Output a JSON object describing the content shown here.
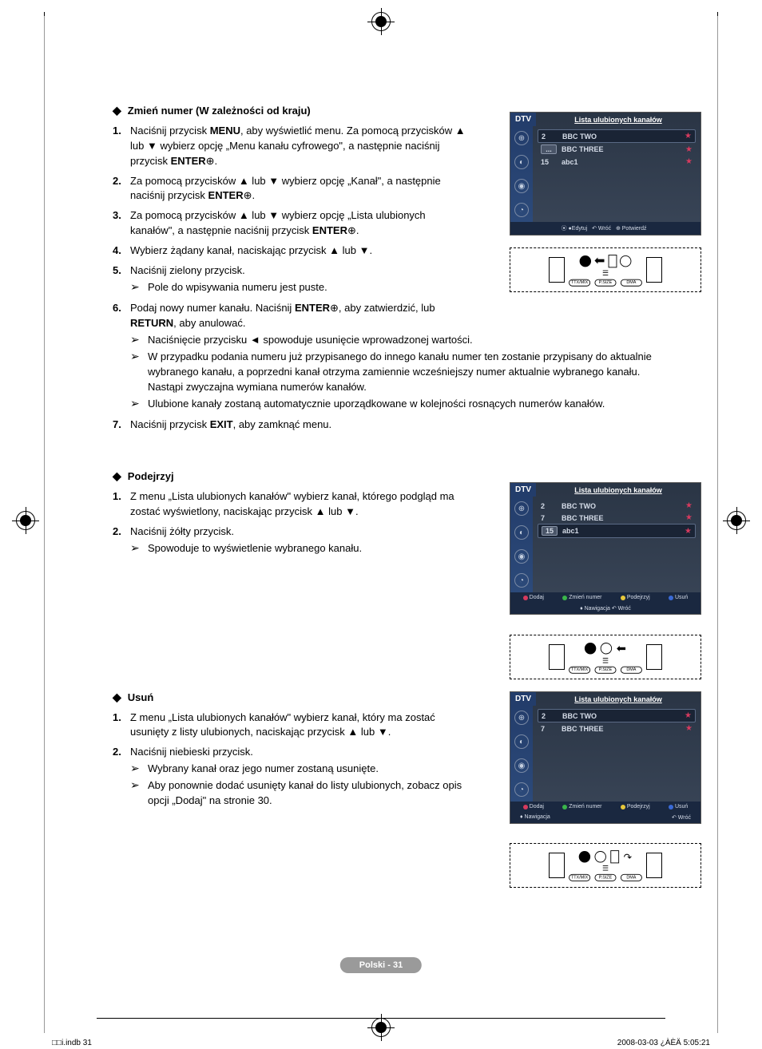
{
  "section1": {
    "title": "Zmień numer (W zależności od kraju)",
    "steps": [
      {
        "n": "1.",
        "html": "Naciśnij przycisk <b>MENU</b>, aby wyświetlić menu. Za pomocą przycisków ▲ lub ▼ wybierz opcję „Menu kanału cyfrowego\", a następnie naciśnij przycisk <b>ENTER</b>⊕."
      },
      {
        "n": "2.",
        "html": "Za pomocą przycisków ▲ lub ▼ wybierz opcję „Kanał\", a następnie naciśnij przycisk <b>ENTER</b>⊕."
      },
      {
        "n": "3.",
        "html": "Za pomocą przycisków ▲ lub ▼ wybierz opcję „Lista ulubionych kanałów\", a następnie naciśnij przycisk <b>ENTER</b>⊕."
      },
      {
        "n": "4.",
        "html": "Wybierz żądany kanał, naciskając przycisk ▲ lub ▼."
      },
      {
        "n": "5.",
        "html": "Naciśnij zielony przycisk.",
        "sub": [
          "Pole do wpisywania numeru jest puste."
        ]
      },
      {
        "n": "6.",
        "html": "Podaj nowy numer kanału. Naciśnij <b>ENTER</b>⊕, aby zatwierdzić, lub <b>RETURN</b>, aby anulować.",
        "sub": [
          "Naciśnięcie przycisku ◄ spowoduje usunięcie wprowadzonej wartości.",
          "W przypadku podania numeru już przypisanego do innego kanału numer ten zostanie przypisany do aktualnie wybranego kanału, a poprzedni kanał otrzyma zamiennie wcześniejszy numer aktualnie wybranego kanału. Nastąpi zwyczajna wymiana numerów kanałów.",
          "Ulubione kanały zostaną automatycznie uporządkowane w kolejności rosnących numerów kanałów."
        ]
      },
      {
        "n": "7.",
        "html": "Naciśnij przycisk <b>EXIT</b>, aby zamknąć menu."
      }
    ]
  },
  "section2": {
    "title": "Podejrzyj",
    "steps": [
      {
        "n": "1.",
        "html": "Z menu „Lista ulubionych kanałów\" wybierz kanał, którego podgląd ma zostać wyświetlony, naciskając przycisk ▲ lub ▼."
      },
      {
        "n": "2.",
        "html": "Naciśnij żółty przycisk.",
        "sub": [
          "Spowoduje to wyświetlenie wybranego kanału."
        ]
      }
    ]
  },
  "section3": {
    "title": "Usuń",
    "steps": [
      {
        "n": "1.",
        "html": "Z menu „Lista ulubionych kanałów\" wybierz kanał, który ma zostać usunięty z listy ulubionych, naciskając przycisk ▲ lub ▼."
      },
      {
        "n": "2.",
        "html": "Naciśnij niebieski przycisk.",
        "sub": [
          "Wybrany kanał oraz jego numer zostaną usunięte.",
          "Aby ponownie dodać usunięty kanał do listy ulubionych, zobacz opis opcji „Dodaj\" na stronie 30."
        ]
      }
    ]
  },
  "tv1": {
    "dtv": "DTV",
    "title": "Lista ulubionych kanałów",
    "rows": [
      {
        "num": "2",
        "name": "BBC TWO",
        "star": true,
        "sel": true
      },
      {
        "num": "...",
        "name": "BBC THREE",
        "star": true,
        "box": true
      },
      {
        "num": "15",
        "name": "abc1",
        "star": true
      }
    ],
    "footer_items": [
      {
        "dot": "",
        "t": "⦿ ●Edytuj"
      },
      {
        "t": "↶ Wróć"
      },
      {
        "t": "⊕ Potwierdź"
      }
    ]
  },
  "tv2": {
    "dtv": "DTV",
    "title": "Lista ulubionych kanałów",
    "rows": [
      {
        "num": "2",
        "name": "BBC TWO",
        "star": true
      },
      {
        "num": "7",
        "name": "BBC THREE",
        "star": true
      },
      {
        "num": "15",
        "name": "abc1",
        "star": true,
        "sel": true,
        "box": true
      }
    ],
    "footer2": [
      {
        "cls": "dot-r",
        "t": "Dodaj"
      },
      {
        "cls": "dot-g",
        "t": "Zmień numer"
      },
      {
        "cls": "dot-y",
        "t": "Podejrzyj"
      },
      {
        "cls": "dot-b",
        "t": "Usuń"
      }
    ],
    "footer_nav": "♦ Nawigacja   ↶ Wróć"
  },
  "tv3": {
    "dtv": "DTV",
    "title": "Lista ulubionych kanałów",
    "rows": [
      {
        "num": "2",
        "name": "BBC TWO",
        "star": true,
        "sel": true
      },
      {
        "num": "7",
        "name": "BBC THREE",
        "star": true
      }
    ],
    "footer2": [
      {
        "cls": "dot-r",
        "t": "Dodaj"
      },
      {
        "cls": "dot-g",
        "t": "Zmień numer"
      },
      {
        "cls": "dot-y",
        "t": "Podejrzyj"
      },
      {
        "cls": "dot-b",
        "t": "Usuń"
      }
    ],
    "footer_nav_left": "♦ Nawigacja",
    "footer_nav_right": "↶ Wróć"
  },
  "remote_labels": [
    "TTX/MIX",
    "P.SIZE",
    "DMA"
  ],
  "page_label": "Polski - 31",
  "footer_left": "□□i.indb   31",
  "footer_right": "2008-03-03   ¿ÀÈÄ 5:05:21"
}
